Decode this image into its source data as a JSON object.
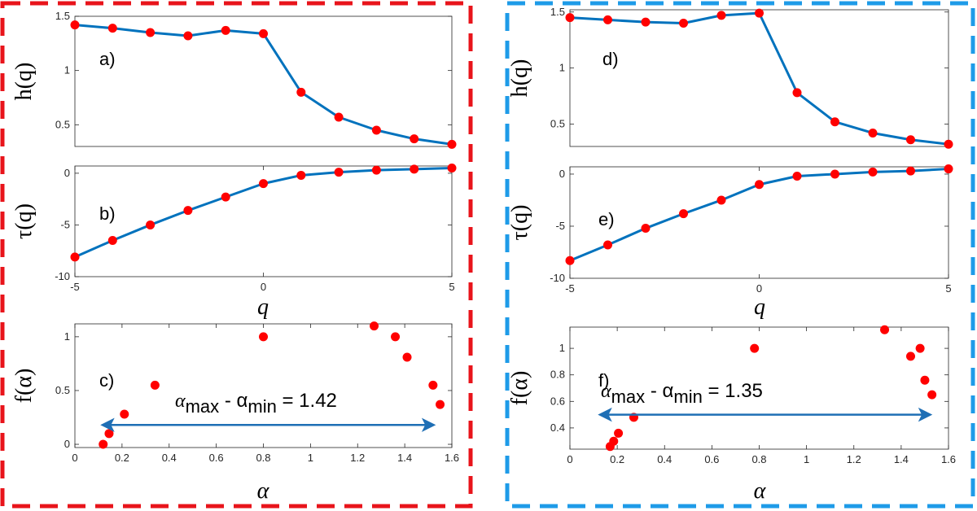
{
  "colors": {
    "line": "#0072BD",
    "marker": "#FF0000",
    "left_frame": "#E8141B",
    "right_frame": "#1E9BE8",
    "arrow": "#1F6FB5"
  },
  "chart_data": [
    {
      "id": "a",
      "type": "line",
      "panel_label": "a)",
      "ylabel": "h(q)",
      "xlabel": "",
      "x": [
        -5,
        -4,
        -3,
        -2,
        -1,
        0,
        1,
        2,
        3,
        4,
        5
      ],
      "y": [
        1.42,
        1.39,
        1.35,
        1.32,
        1.37,
        1.34,
        0.8,
        0.57,
        0.45,
        0.37,
        0.32
      ],
      "xlim": [
        -5,
        5
      ],
      "ylim": [
        0.3,
        1.5
      ],
      "xticks": [],
      "yticks": [
        0.5,
        1,
        1.5
      ],
      "yticklabels": [
        "0.5",
        "1",
        "1.5"
      ]
    },
    {
      "id": "b",
      "type": "line",
      "panel_label": "b)",
      "ylabel": "τ(q)",
      "xlabel": "q",
      "x": [
        -5,
        -4,
        -3,
        -2,
        -1,
        0,
        1,
        2,
        3,
        4,
        5
      ],
      "y": [
        -8.1,
        -6.5,
        -5.0,
        -3.6,
        -2.3,
        -1.0,
        -0.2,
        0.1,
        0.3,
        0.4,
        0.5
      ],
      "xlim": [
        -5,
        5
      ],
      "ylim": [
        -10,
        0.7
      ],
      "xticks": [
        -5,
        0,
        5
      ],
      "xticklabels": [
        "-5",
        "0",
        "5"
      ],
      "yticks": [
        -10,
        -5,
        0
      ],
      "yticklabels": [
        "-10",
        "-5",
        "0"
      ]
    },
    {
      "id": "c",
      "type": "scatter",
      "panel_label": "c)",
      "ylabel": "f(α)",
      "xlabel": "α",
      "x": [
        0.12,
        0.145,
        0.21,
        0.34,
        0.8,
        1.27,
        1.36,
        1.41,
        1.52,
        1.55
      ],
      "y": [
        0.0,
        0.1,
        0.28,
        0.55,
        1.0,
        1.1,
        1.0,
        0.81,
        0.55,
        0.37
      ],
      "xlim": [
        0,
        1.6
      ],
      "ylim": [
        -0.03,
        1.12
      ],
      "xticks": [
        0,
        0.2,
        0.4,
        0.6,
        0.8,
        1,
        1.2,
        1.4,
        1.6
      ],
      "xticklabels": [
        "0",
        "0.2",
        "0.4",
        "0.6",
        "0.8",
        "1",
        "1.2",
        "1.4",
        "1.6"
      ],
      "yticks": [
        0,
        0.5,
        1
      ],
      "yticklabels": [
        "0",
        "0.5",
        "1"
      ],
      "annotation": {
        "text_main": "α",
        "sub1": "max",
        "mid": " - α",
        "sub2": "min",
        "tail": " = 1.42"
      },
      "arrow_x": [
        0.12,
        1.52
      ],
      "arrow_y": 0.18
    },
    {
      "id": "d",
      "type": "line",
      "panel_label": "d)",
      "ylabel": "h(q)",
      "xlabel": "",
      "x": [
        -5,
        -4,
        -3,
        -2,
        -1,
        0,
        1,
        2,
        3,
        4,
        5
      ],
      "y": [
        1.45,
        1.43,
        1.41,
        1.4,
        1.47,
        1.49,
        0.78,
        0.52,
        0.42,
        0.36,
        0.32
      ],
      "xlim": [
        -5,
        5
      ],
      "ylim": [
        0.3,
        1.52
      ],
      "xticks": [],
      "yticks": [
        0.5,
        1,
        1.5
      ],
      "yticklabels": [
        "0.5",
        "1",
        "1.5"
      ]
    },
    {
      "id": "e",
      "type": "line",
      "panel_label": "e)",
      "ylabel": "τ(q)",
      "xlabel": "q",
      "x": [
        -5,
        -4,
        -3,
        -2,
        -1,
        0,
        1,
        2,
        3,
        4,
        5
      ],
      "y": [
        -8.3,
        -6.8,
        -5.2,
        -3.8,
        -2.5,
        -1.0,
        -0.2,
        0.0,
        0.2,
        0.3,
        0.5
      ],
      "xlim": [
        -5,
        5
      ],
      "ylim": [
        -10,
        0.7
      ],
      "xticks": [
        -5,
        0,
        5
      ],
      "xticklabels": [
        "-5",
        "0",
        "5"
      ],
      "yticks": [
        -10,
        -5,
        0
      ],
      "yticklabels": [
        "-10",
        "-5",
        "0"
      ]
    },
    {
      "id": "f",
      "type": "scatter",
      "panel_label": "f)",
      "ylabel": "f(α)",
      "xlabel": "α",
      "x": [
        0.17,
        0.185,
        0.205,
        0.27,
        0.78,
        1.33,
        1.44,
        1.48,
        1.5,
        1.53
      ],
      "y": [
        0.26,
        0.3,
        0.36,
        0.48,
        1.0,
        1.14,
        0.94,
        1.0,
        0.76,
        0.65
      ],
      "xlim": [
        0,
        1.6
      ],
      "ylim": [
        0.24,
        1.16
      ],
      "xticks": [
        0,
        0.2,
        0.4,
        0.6,
        0.8,
        1,
        1.2,
        1.4,
        1.6
      ],
      "xticklabels": [
        "0",
        "0.2",
        "0.4",
        "0.6",
        "0.8",
        "1",
        "1.2",
        "1.4",
        "1.6"
      ],
      "yticks": [
        0.4,
        0.6,
        0.8,
        1
      ],
      "yticklabels": [
        "0.4",
        "0.6",
        "0.8",
        "1"
      ],
      "annotation": {
        "text_main": "α",
        "sub1": "max",
        "mid": " - α",
        "sub2": "min",
        "tail": " = 1.35"
      },
      "arrow_x": [
        0.13,
        1.52
      ],
      "arrow_y": 0.5
    }
  ]
}
